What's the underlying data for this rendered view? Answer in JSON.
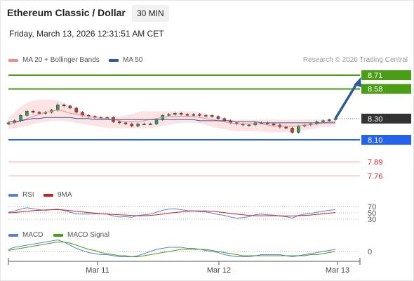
{
  "header": {
    "title": "Ethereum Classic / Dollar",
    "timeframe": "30 MIN",
    "datetime": "Friday, March 13, 2026 12:31:51 AM CET",
    "credit": "Research © 2026 Trading Central"
  },
  "colors": {
    "ma20": "#f08c8c",
    "ma50": "#2f5a9a",
    "bollinger_fill": "#fde0e0",
    "resistance": "#4a9e16",
    "support": "#2563eb",
    "target_line": "#f0a0a0",
    "price_badge": "#333333",
    "arrow": "#2f5a9a",
    "rsi": "#5b7fd6",
    "ma9": "#cc1f1f",
    "macd": "#5b7fd6",
    "macd_signal": "#4a9e16",
    "candle_up": "#2a9d4f",
    "candle_down": "#c0392b"
  },
  "price_panel": {
    "legend": [
      {
        "label": "MA 20 + Bollinger Bands",
        "color": "#f08c8c"
      },
      {
        "label": "MA 50",
        "color": "#2f5a9a"
      }
    ],
    "levels": [
      {
        "value": 8.71,
        "label": "8.71",
        "kind": "resistance"
      },
      {
        "value": 8.58,
        "label": "8.58",
        "kind": "resistance"
      },
      {
        "value": 8.3,
        "label": "8.30",
        "kind": "current"
      },
      {
        "value": 8.1,
        "label": "8.10",
        "kind": "support"
      },
      {
        "value": 7.89,
        "label": "7.89",
        "kind": "target"
      },
      {
        "value": 7.76,
        "label": "7.76",
        "kind": "target"
      }
    ]
  },
  "rsi_panel": {
    "legend": [
      {
        "label": "RSI",
        "color": "#5b7fd6"
      },
      {
        "label": "9MA",
        "color": "#cc1f1f"
      }
    ],
    "levels": [
      "70",
      "50",
      "30"
    ]
  },
  "macd_panel": {
    "legend": [
      {
        "label": "MACD",
        "color": "#5b7fd6"
      },
      {
        "label": "MACD Signal",
        "color": "#4a9e16"
      }
    ],
    "levels": [
      "0"
    ]
  },
  "chart_data": {
    "type": "line",
    "ylim": [
      7.7,
      8.75
    ],
    "x_tick_labels": [
      "Mar 11",
      "Mar 12",
      "Mar 13"
    ],
    "price_close": [
      8.26,
      8.28,
      8.33,
      8.37,
      8.36,
      8.35,
      8.36,
      8.38,
      8.43,
      8.42,
      8.4,
      8.36,
      8.33,
      8.32,
      8.31,
      8.31,
      8.31,
      8.27,
      8.26,
      8.25,
      8.23,
      8.25,
      8.25,
      8.25,
      8.29,
      8.33,
      8.34,
      8.35,
      8.34,
      8.33,
      8.34,
      8.33,
      8.33,
      8.32,
      8.3,
      8.28,
      8.26,
      8.25,
      8.24,
      8.24,
      8.26,
      8.26,
      8.25,
      8.24,
      8.22,
      8.21,
      8.17,
      8.23,
      8.24,
      8.25,
      8.27,
      8.28,
      8.29,
      8.3
    ],
    "ma20": [
      8.24,
      8.26,
      8.28,
      8.3,
      8.32,
      8.34,
      8.36,
      8.37,
      8.38,
      8.37,
      8.35,
      8.34,
      8.33,
      8.32,
      8.31,
      8.3,
      8.3,
      8.29,
      8.28,
      8.27,
      8.27,
      8.27,
      8.28,
      8.29,
      8.3,
      8.31,
      8.32,
      8.32,
      8.32,
      8.32,
      8.32,
      8.31,
      8.3,
      8.29,
      8.28,
      8.27,
      8.26,
      8.25,
      8.25,
      8.25,
      8.25,
      8.25,
      8.24,
      8.23,
      8.23,
      8.23,
      8.23,
      8.23,
      8.24,
      8.24,
      8.25,
      8.26,
      8.27,
      8.27
    ],
    "ma50": [
      8.27,
      8.27,
      8.28,
      8.29,
      8.3,
      8.3,
      8.31,
      8.31,
      8.31,
      8.31,
      8.31,
      8.3,
      8.3,
      8.3,
      8.29,
      8.29,
      8.29,
      8.29,
      8.29,
      8.29,
      8.29,
      8.29,
      8.29,
      8.29,
      8.29,
      8.29,
      8.29,
      8.29,
      8.29,
      8.29,
      8.29,
      8.28,
      8.28,
      8.28,
      8.28,
      8.28,
      8.28,
      8.27,
      8.27,
      8.27,
      8.27,
      8.26,
      8.26,
      8.26,
      8.26,
      8.26,
      8.26,
      8.26,
      8.26,
      8.26,
      8.26,
      8.26,
      8.26,
      8.26
    ],
    "bb_upper": [
      8.31,
      8.36,
      8.41,
      8.45,
      8.47,
      8.48,
      8.48,
      8.48,
      8.47,
      8.45,
      8.42,
      8.39,
      8.36,
      8.34,
      8.33,
      8.32,
      8.32,
      8.32,
      8.32,
      8.33,
      8.34,
      8.36,
      8.37,
      8.37,
      8.37,
      8.37,
      8.37,
      8.37,
      8.37,
      8.37,
      8.37,
      8.36,
      8.35,
      8.33,
      8.31,
      8.3,
      8.29,
      8.29,
      8.29,
      8.29,
      8.29,
      8.29,
      8.29,
      8.29,
      8.29,
      8.29,
      8.29,
      8.29,
      8.29,
      8.29,
      8.29,
      8.29,
      8.29,
      8.29
    ],
    "bb_lower": [
      8.2,
      8.21,
      8.22,
      8.23,
      8.25,
      8.26,
      8.27,
      8.28,
      8.28,
      8.28,
      8.27,
      8.26,
      8.25,
      8.24,
      8.23,
      8.22,
      8.21,
      8.21,
      8.21,
      8.21,
      8.21,
      8.21,
      8.21,
      8.21,
      8.22,
      8.23,
      8.24,
      8.25,
      8.26,
      8.26,
      8.26,
      8.25,
      8.24,
      8.22,
      8.21,
      8.2,
      8.19,
      8.18,
      8.18,
      8.18,
      8.18,
      8.18,
      8.17,
      8.17,
      8.17,
      8.17,
      8.17,
      8.18,
      8.19,
      8.2,
      8.21,
      8.22,
      8.22,
      8.22
    ],
    "rsi": [
      52,
      56,
      62,
      66,
      63,
      60,
      58,
      60,
      62,
      57,
      52,
      47,
      46,
      46,
      47,
      47,
      46,
      40,
      37,
      38,
      36,
      42,
      44,
      46,
      52,
      58,
      62,
      63,
      60,
      57,
      56,
      54,
      53,
      49,
      45,
      42,
      37,
      33,
      35,
      38,
      44,
      46,
      44,
      43,
      40,
      38,
      33,
      42,
      46,
      48,
      52,
      55,
      58,
      60
    ],
    "rsi_ma9": [
      50,
      51,
      53,
      55,
      57,
      58,
      59,
      60,
      60,
      59,
      57,
      55,
      53,
      51,
      49,
      47,
      46,
      45,
      44,
      43,
      42,
      41,
      41,
      42,
      44,
      46,
      49,
      51,
      53,
      55,
      56,
      56,
      56,
      55,
      53,
      51,
      48,
      46,
      44,
      42,
      41,
      41,
      41,
      41,
      41,
      40,
      40,
      41,
      42,
      43,
      45,
      47,
      49,
      51
    ],
    "macd": [
      0.02,
      0.04,
      0.05,
      0.06,
      0.07,
      0.08,
      0.09,
      0.1,
      0.11,
      0.09,
      0.06,
      0.03,
      0.01,
      -0.01,
      -0.02,
      -0.03,
      -0.03,
      -0.04,
      -0.05,
      -0.05,
      -0.05,
      -0.04,
      -0.02,
      0.0,
      0.02,
      0.03,
      0.04,
      0.04,
      0.04,
      0.03,
      0.03,
      0.02,
      0.01,
      0.0,
      -0.01,
      -0.03,
      -0.04,
      -0.05,
      -0.05,
      -0.05,
      -0.04,
      -0.03,
      -0.03,
      -0.03,
      -0.03,
      -0.04,
      -0.05,
      -0.04,
      -0.03,
      -0.02,
      -0.01,
      0.0,
      0.01,
      0.02
    ],
    "macd_signal": [
      0.01,
      0.02,
      0.03,
      0.04,
      0.05,
      0.06,
      0.07,
      0.08,
      0.09,
      0.09,
      0.08,
      0.06,
      0.04,
      0.02,
      0.01,
      -0.01,
      -0.02,
      -0.03,
      -0.04,
      -0.04,
      -0.05,
      -0.05,
      -0.04,
      -0.03,
      -0.02,
      -0.01,
      0.0,
      0.01,
      0.02,
      0.02,
      0.02,
      0.02,
      0.02,
      0.01,
      0.0,
      -0.01,
      -0.02,
      -0.03,
      -0.04,
      -0.04,
      -0.04,
      -0.04,
      -0.04,
      -0.04,
      -0.04,
      -0.04,
      -0.04,
      -0.04,
      -0.04,
      -0.03,
      -0.03,
      -0.02,
      -0.01,
      0.0
    ]
  }
}
